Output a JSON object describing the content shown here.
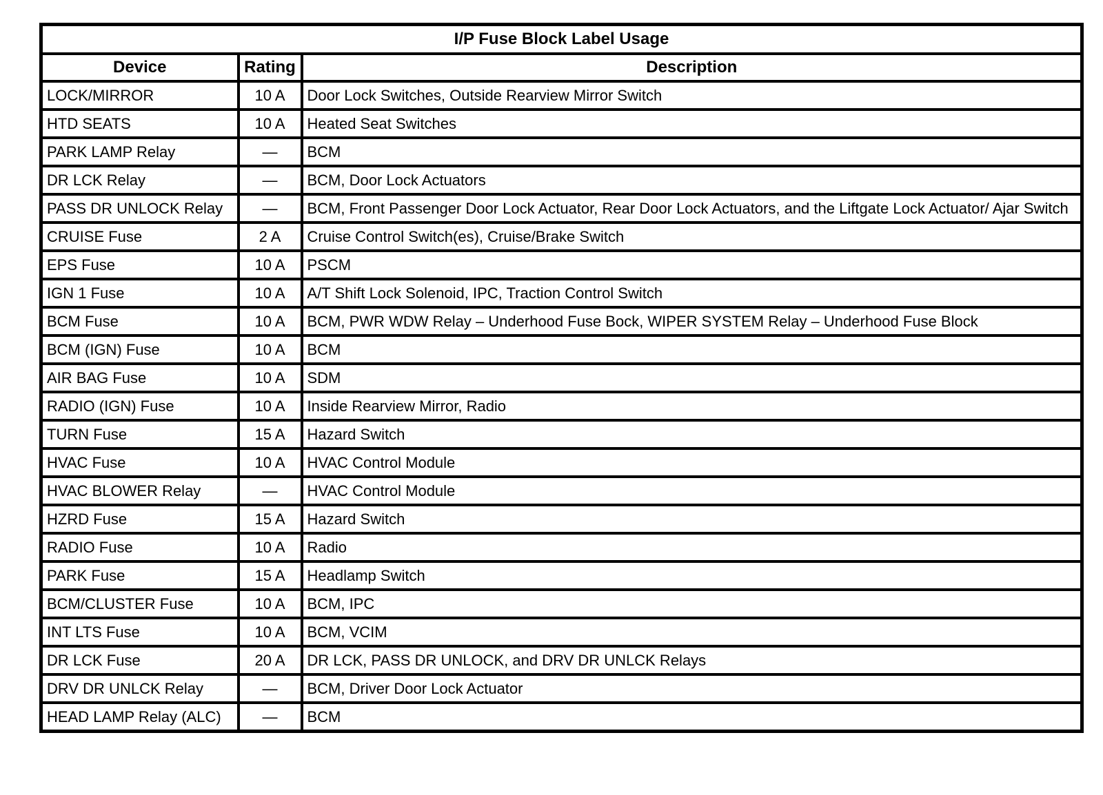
{
  "page": {
    "background_color": "#ffffff",
    "border_color": "#000000"
  },
  "table": {
    "title": "I/P Fuse Block Label Usage",
    "columns": [
      {
        "key": "device",
        "label": "Device"
      },
      {
        "key": "rating",
        "label": "Rating"
      },
      {
        "key": "description",
        "label": "Description"
      }
    ],
    "rows": [
      {
        "device": "LOCK/MIRROR",
        "rating": "10 A",
        "description": "Door Lock Switches, Outside Rearview Mirror Switch"
      },
      {
        "device": "HTD SEATS",
        "rating": "10 A",
        "description": "Heated Seat Switches"
      },
      {
        "device": "PARK LAMP Relay",
        "rating": "—",
        "description": "BCM"
      },
      {
        "device": "DR LCK Relay",
        "rating": "—",
        "description": "BCM, Door Lock Actuators"
      },
      {
        "device": "PASS DR UNLOCK Relay",
        "rating": "—",
        "description": "BCM, Front Passenger Door Lock Actuator, Rear Door Lock Actuators, and the Liftgate Lock Actuator/ Ajar Switch"
      },
      {
        "device": "CRUISE Fuse",
        "rating": "2 A",
        "description": "Cruise Control Switch(es), Cruise/Brake Switch"
      },
      {
        "device": "EPS Fuse",
        "rating": "10 A",
        "description": "PSCM"
      },
      {
        "device": "IGN 1 Fuse",
        "rating": "10 A",
        "description": "A/T Shift Lock Solenoid, IPC, Traction Control Switch"
      },
      {
        "device": "BCM Fuse",
        "rating": "10 A",
        "description": "BCM, PWR WDW Relay – Underhood Fuse Bock, WIPER SYSTEM Relay – Underhood Fuse Block"
      },
      {
        "device": "BCM (IGN) Fuse",
        "rating": "10 A",
        "description": "BCM"
      },
      {
        "device": "AIR BAG Fuse",
        "rating": "10 A",
        "description": "SDM"
      },
      {
        "device": "RADIO (IGN) Fuse",
        "rating": "10 A",
        "description": "Inside Rearview Mirror, Radio"
      },
      {
        "device": "TURN Fuse",
        "rating": "15 A",
        "description": "Hazard Switch"
      },
      {
        "device": "HVAC Fuse",
        "rating": "10 A",
        "description": "HVAC Control Module"
      },
      {
        "device": "HVAC BLOWER Relay",
        "rating": "—",
        "description": "HVAC Control Module"
      },
      {
        "device": "HZRD Fuse",
        "rating": "15 A",
        "description": "Hazard Switch"
      },
      {
        "device": "RADIO Fuse",
        "rating": "10 A",
        "description": "Radio"
      },
      {
        "device": "PARK Fuse",
        "rating": "15 A",
        "description": "Headlamp Switch"
      },
      {
        "device": "BCM/CLUSTER Fuse",
        "rating": "10 A",
        "description": "BCM, IPC"
      },
      {
        "device": "INT LTS Fuse",
        "rating": "10 A",
        "description": "BCM, VCIM"
      },
      {
        "device": "DR LCK Fuse",
        "rating": "20 A",
        "description": "DR LCK, PASS DR UNLOCK, and DRV DR UNLCK Relays"
      },
      {
        "device": "DRV DR UNLCK Relay",
        "rating": "—",
        "description": "BCM, Driver Door Lock Actuator"
      },
      {
        "device": "HEAD LAMP Relay (ALC)",
        "rating": "—",
        "description": "BCM"
      }
    ]
  }
}
